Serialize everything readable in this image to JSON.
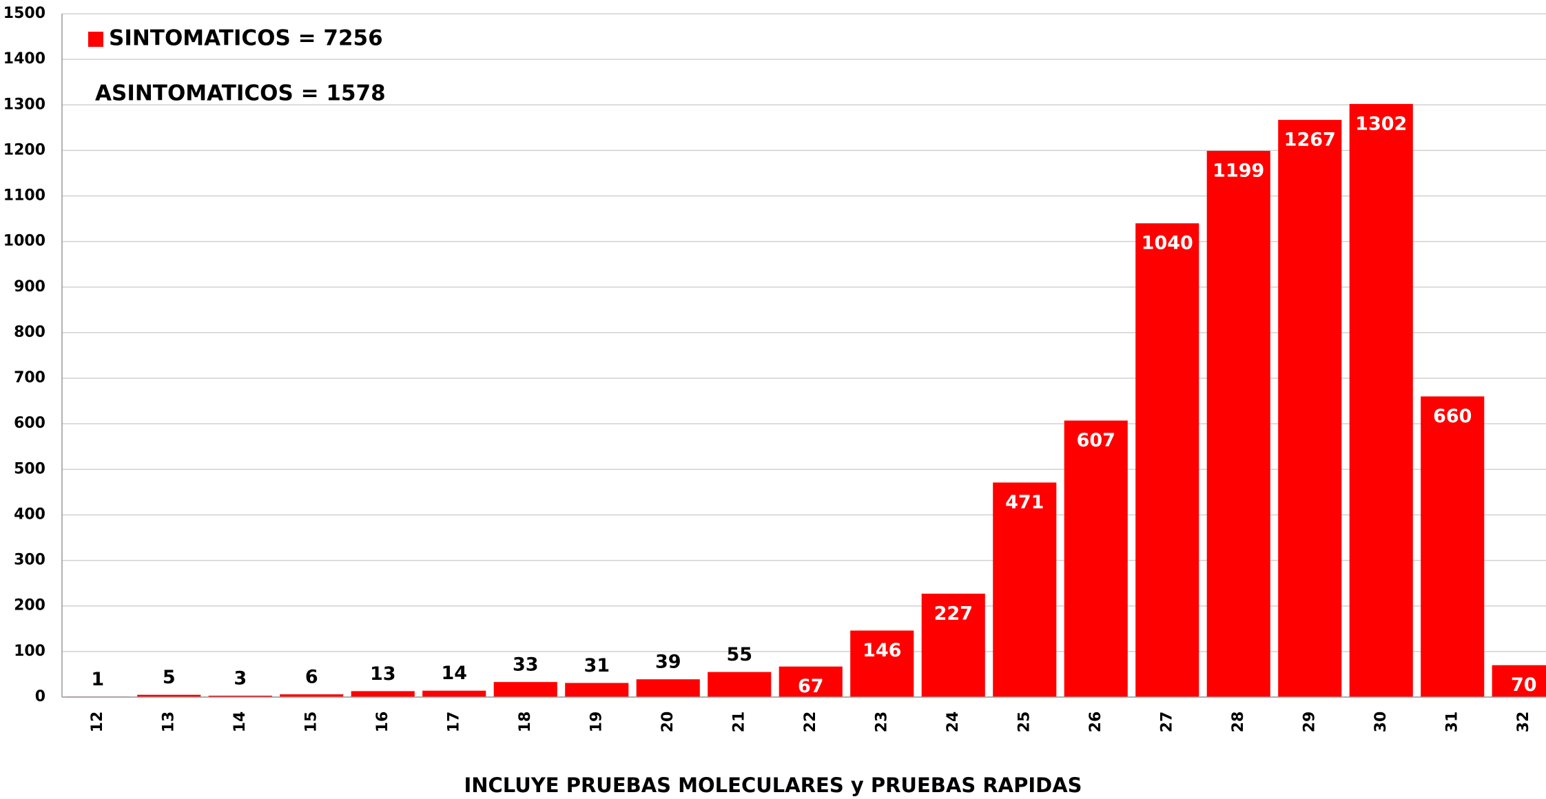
{
  "chart_data": {
    "type": "bar",
    "series": [
      {
        "name": "SINTOMATICOS = 7256",
        "color": "#ff0000",
        "values": [
          1,
          5,
          3,
          6,
          13,
          14,
          33,
          31,
          39,
          55,
          67,
          146,
          227,
          471,
          607,
          1040,
          1199,
          1267,
          1302,
          660,
          70
        ]
      }
    ],
    "categories": [
      "12",
      "13",
      "14",
      "15",
      "16",
      "17",
      "18",
      "19",
      "20",
      "21",
      "22",
      "23",
      "24",
      "25",
      "26",
      "27",
      "28",
      "29",
      "30",
      "31",
      "32"
    ],
    "annotation": "ASINTOMATICOS = 1578",
    "x_label": "INCLUYE PRUEBAS MOLECULARES y PRUEBAS RAPIDAS",
    "ylim": [
      0,
      1500
    ],
    "yticks": [
      0,
      100,
      200,
      300,
      400,
      500,
      600,
      700,
      800,
      900,
      1000,
      1100,
      1200,
      1300,
      1400,
      1500
    ],
    "grid": true
  }
}
